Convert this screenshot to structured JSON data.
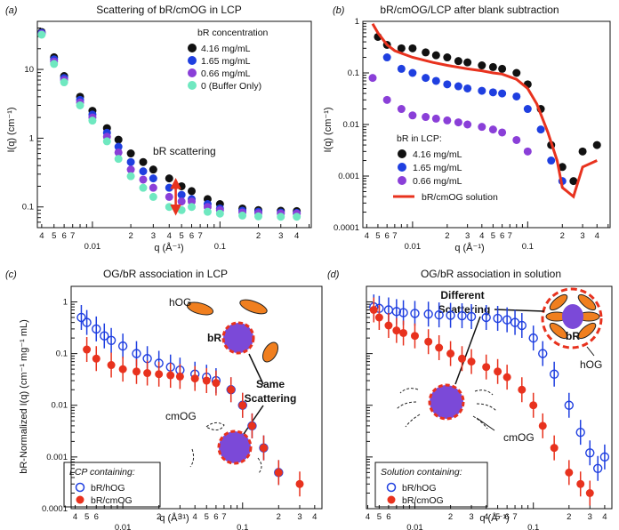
{
  "chart_data": [
    {
      "id": "a",
      "type": "scatter",
      "panel_label": "(a)",
      "title": "Scattering of bR/cmOG in LCP",
      "xlabel": "q (Å⁻¹)",
      "ylabel": "I(q) (cm⁻¹)",
      "xscale": "log",
      "yscale": "log",
      "xlim": [
        0.0037,
        0.52
      ],
      "ylim": [
        0.05,
        50
      ],
      "grid": false,
      "xticks_major": [
        "0.01",
        "0.1"
      ],
      "xticks_minor": [
        "4",
        "5",
        "6",
        "7",
        "2",
        "3",
        "4",
        "5",
        "6",
        "7",
        "2",
        "3",
        "4"
      ],
      "yticks": [
        "0.1",
        "1",
        "10"
      ],
      "legend": {
        "title": "bR concentration",
        "position": "top-right"
      },
      "annotations": [
        {
          "text": "bR scattering",
          "color": "#e8321e",
          "q": 0.045,
          "from": 0.09,
          "to": 0.22
        }
      ],
      "series": [
        {
          "name": "4.16 mg/mL",
          "color": "#111111",
          "x": [
            0.004,
            0.005,
            0.006,
            0.008,
            0.01,
            0.013,
            0.016,
            0.02,
            0.025,
            0.03,
            0.04,
            0.05,
            0.06,
            0.08,
            0.1,
            0.15,
            0.2,
            0.3,
            0.4
          ],
          "y": [
            35,
            15,
            8,
            4,
            2.5,
            1.4,
            0.95,
            0.6,
            0.45,
            0.35,
            0.26,
            0.2,
            0.17,
            0.13,
            0.11,
            0.095,
            0.09,
            0.088,
            0.087
          ]
        },
        {
          "name": "1.65 mg/mL",
          "color": "#1f3fe0",
          "x": [
            0.004,
            0.005,
            0.006,
            0.008,
            0.01,
            0.013,
            0.016,
            0.02,
            0.025,
            0.03,
            0.04,
            0.05,
            0.06,
            0.08,
            0.1,
            0.15,
            0.2,
            0.3,
            0.4
          ],
          "y": [
            34,
            14,
            7.5,
            3.6,
            2.2,
            1.2,
            0.75,
            0.45,
            0.33,
            0.26,
            0.19,
            0.15,
            0.13,
            0.11,
            0.095,
            0.088,
            0.085,
            0.083,
            0.082
          ]
        },
        {
          "name": "0.66 mg/mL",
          "color": "#8a3fd8",
          "x": [
            0.004,
            0.005,
            0.006,
            0.008,
            0.01,
            0.013,
            0.016,
            0.02,
            0.025,
            0.03,
            0.04,
            0.05,
            0.06,
            0.08,
            0.1,
            0.15,
            0.2,
            0.3,
            0.4
          ],
          "y": [
            33,
            13,
            7,
            3.3,
            2,
            1.05,
            0.62,
            0.35,
            0.25,
            0.19,
            0.14,
            0.12,
            0.12,
            0.1,
            0.09,
            0.083,
            0.081,
            0.08,
            0.08
          ]
        },
        {
          "name": "0 (Buffer Only)",
          "color": "#6fe8c0",
          "x": [
            0.004,
            0.005,
            0.006,
            0.008,
            0.01,
            0.013,
            0.016,
            0.02,
            0.025,
            0.03,
            0.04,
            0.05,
            0.06,
            0.08,
            0.1,
            0.15,
            0.2,
            0.3,
            0.4
          ],
          "y": [
            32,
            12,
            6.5,
            3,
            1.8,
            0.9,
            0.5,
            0.28,
            0.19,
            0.14,
            0.1,
            0.09,
            0.1,
            0.085,
            0.08,
            0.075,
            0.073,
            0.072,
            0.072
          ]
        }
      ]
    },
    {
      "id": "b",
      "type": "scatter",
      "panel_label": "(b)",
      "title": "bR/cmOG/LCP after blank subtraction",
      "xlabel": "q (Å⁻¹)",
      "ylabel": "I(q) (cm⁻¹)",
      "xscale": "log",
      "yscale": "log",
      "xlim": [
        0.0037,
        0.52
      ],
      "ylim": [
        0.0001,
        1
      ],
      "grid": false,
      "xticks_major": [
        "0.01",
        "0.1"
      ],
      "xticks_minor": [
        "4",
        "5",
        "6",
        "7",
        "2",
        "3",
        "4",
        "5",
        "6",
        "7",
        "2",
        "3",
        "4"
      ],
      "yticks": [
        "0.0001",
        "0.001",
        "0.01",
        "0.1",
        "1"
      ],
      "legend": {
        "title": "bR in LCP:",
        "position": "bottom-left"
      },
      "series": [
        {
          "name": "4.16 mg/mL",
          "color": "#111111",
          "x": [
            0.005,
            0.006,
            0.008,
            0.01,
            0.013,
            0.016,
            0.02,
            0.025,
            0.03,
            0.04,
            0.05,
            0.06,
            0.08,
            0.1,
            0.13,
            0.16,
            0.2,
            0.25,
            0.3,
            0.4
          ],
          "y": [
            0.5,
            0.35,
            0.3,
            0.3,
            0.25,
            0.22,
            0.2,
            0.17,
            0.16,
            0.14,
            0.13,
            0.12,
            0.1,
            0.06,
            0.02,
            0.004,
            0.0015,
            0.0008,
            0.003,
            0.004
          ]
        },
        {
          "name": "1.65 mg/mL",
          "color": "#1f3fe0",
          "x": [
            0.006,
            0.008,
            0.01,
            0.013,
            0.016,
            0.02,
            0.025,
            0.03,
            0.04,
            0.05,
            0.06,
            0.08,
            0.1,
            0.13,
            0.16,
            0.2
          ],
          "y": [
            0.2,
            0.12,
            0.1,
            0.08,
            0.07,
            0.06,
            0.055,
            0.05,
            0.045,
            0.042,
            0.04,
            0.035,
            0.02,
            0.008,
            0.002,
            0.0008
          ]
        },
        {
          "name": "0.66 mg/mL",
          "color": "#8a3fd8",
          "x": [
            0.0045,
            0.006,
            0.008,
            0.01,
            0.013,
            0.016,
            0.02,
            0.025,
            0.03,
            0.04,
            0.05,
            0.06,
            0.08,
            0.1
          ],
          "y": [
            0.08,
            0.03,
            0.02,
            0.015,
            0.014,
            0.013,
            0.012,
            0.011,
            0.01,
            0.009,
            0.008,
            0.007,
            0.005,
            0.003
          ]
        },
        {
          "name": "bR/cmOG solution",
          "color": "#e8321e",
          "style": "line",
          "x": [
            0.0045,
            0.005,
            0.006,
            0.007,
            0.008,
            0.01,
            0.015,
            0.02,
            0.03,
            0.04,
            0.05,
            0.06,
            0.08,
            0.1,
            0.12,
            0.15,
            0.18,
            0.2,
            0.25,
            0.3,
            0.4
          ],
          "y": [
            0.9,
            0.6,
            0.35,
            0.27,
            0.24,
            0.2,
            0.16,
            0.14,
            0.12,
            0.11,
            0.1,
            0.095,
            0.075,
            0.05,
            0.025,
            0.007,
            0.002,
            0.0006,
            0.0004,
            0.0015,
            0.002
          ]
        }
      ]
    },
    {
      "id": "c",
      "type": "scatter",
      "panel_label": "(c)",
      "title": "OG/bR association in LCP",
      "xlabel": "q (Å⁻¹)",
      "ylabel": "bR-Normalized I(q) (cm⁻¹ mg⁻¹ mL)",
      "xscale": "log",
      "yscale": "log",
      "xlim": [
        0.0037,
        0.46
      ],
      "ylim": [
        0.0001,
        2
      ],
      "grid": false,
      "xticks_major": [
        "0.01",
        "0.1"
      ],
      "xticks_minor": [
        "4",
        "5",
        "6",
        "2",
        "3",
        "4",
        "5",
        "6",
        "7",
        "2",
        "3",
        "4"
      ],
      "yticks": [
        "0.0001",
        "0.001",
        "0.01",
        "0.1",
        "1"
      ],
      "legend": {
        "title": "LCP containing:",
        "position": "bottom-left"
      },
      "annotations": [
        {
          "text": "hOG"
        },
        {
          "text": "bR"
        },
        {
          "text": "cmOG"
        },
        {
          "text": "Same"
        },
        {
          "text": "Scattering"
        }
      ],
      "series": [
        {
          "name": "bR/hOG",
          "color": "#1f3fe0",
          "marker": "open-circle",
          "x": [
            0.0045,
            0.005,
            0.006,
            0.007,
            0.008,
            0.01,
            0.013,
            0.016,
            0.02,
            0.025,
            0.03,
            0.04,
            0.05,
            0.06,
            0.08,
            0.1,
            0.12,
            0.15,
            0.2
          ],
          "y": [
            0.5,
            0.4,
            0.3,
            0.22,
            0.18,
            0.14,
            0.1,
            0.08,
            0.065,
            0.055,
            0.048,
            0.04,
            0.035,
            0.03,
            0.02,
            0.01,
            0.004,
            0.0015,
            0.0005
          ]
        },
        {
          "name": "bR/cmOG",
          "color": "#e8321e",
          "marker": "filled-circle",
          "x": [
            0.005,
            0.006,
            0.008,
            0.01,
            0.013,
            0.016,
            0.02,
            0.025,
            0.03,
            0.04,
            0.05,
            0.06,
            0.08,
            0.1,
            0.12,
            0.15,
            0.2,
            0.3
          ],
          "y": [
            0.12,
            0.08,
            0.06,
            0.05,
            0.045,
            0.042,
            0.04,
            0.038,
            0.036,
            0.033,
            0.03,
            0.027,
            0.02,
            0.01,
            0.004,
            0.0015,
            0.0005,
            0.0003
          ]
        }
      ]
    },
    {
      "id": "d",
      "type": "scatter",
      "panel_label": "(d)",
      "title": "OG/bR association in solution",
      "xlabel": "q (Å⁻¹)",
      "ylabel": "",
      "xscale": "log",
      "yscale": "log",
      "xlim": [
        0.0039,
        0.46
      ],
      "ylim": [
        0.0001,
        2
      ],
      "grid": false,
      "xticks_major": [
        "0.01",
        "0.1"
      ],
      "xticks_minor": [
        "4",
        "5",
        "6",
        "2",
        "3",
        "4",
        "5",
        "6",
        "7",
        "2",
        "3",
        "4"
      ],
      "yticks": [],
      "legend": {
        "title": "Solution containing:",
        "position": "bottom-left"
      },
      "annotations": [
        {
          "text": "Different"
        },
        {
          "text": "Scattering"
        },
        {
          "text": "bR"
        },
        {
          "text": "hOG"
        },
        {
          "text": "cmOG"
        }
      ],
      "series": [
        {
          "name": "bR/hOG",
          "color": "#1f3fe0",
          "marker": "open-circle",
          "x": [
            0.0045,
            0.005,
            0.006,
            0.007,
            0.008,
            0.01,
            0.013,
            0.016,
            0.02,
            0.025,
            0.03,
            0.04,
            0.05,
            0.06,
            0.07,
            0.08,
            0.1,
            0.12,
            0.15,
            0.2,
            0.25,
            0.3,
            0.35,
            0.4
          ],
          "y": [
            0.8,
            0.75,
            0.7,
            0.65,
            0.62,
            0.6,
            0.58,
            0.56,
            0.55,
            0.54,
            0.52,
            0.5,
            0.48,
            0.45,
            0.4,
            0.35,
            0.2,
            0.1,
            0.04,
            0.01,
            0.003,
            0.0012,
            0.0006,
            0.001
          ]
        },
        {
          "name": "bR/cmOG",
          "color": "#e8321e",
          "marker": "filled-circle",
          "x": [
            0.0045,
            0.005,
            0.006,
            0.007,
            0.008,
            0.01,
            0.013,
            0.016,
            0.02,
            0.025,
            0.03,
            0.04,
            0.05,
            0.06,
            0.08,
            0.1,
            0.12,
            0.15,
            0.2,
            0.25,
            0.3
          ],
          "y": [
            0.7,
            0.5,
            0.35,
            0.28,
            0.25,
            0.22,
            0.17,
            0.13,
            0.1,
            0.08,
            0.07,
            0.055,
            0.045,
            0.035,
            0.02,
            0.01,
            0.004,
            0.0015,
            0.0005,
            0.0003,
            0.0002
          ]
        }
      ]
    }
  ]
}
